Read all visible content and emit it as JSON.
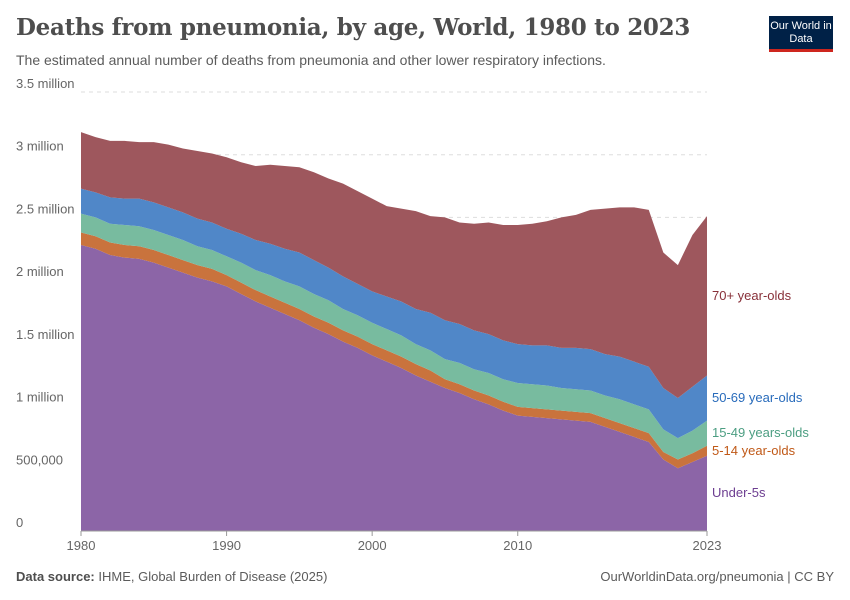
{
  "header": {
    "title": "Deaths from pneumonia, by age, World, 1980 to 2023",
    "subtitle": "The estimated annual number of deaths from pneumonia and other lower respiratory infections.",
    "logo_text": "Our World in Data"
  },
  "footer": {
    "source_label": "Data source:",
    "source_text": "IHME, Global Burden of Disease (2025)",
    "credit": "OurWorldinData.org/pneumonia | CC BY"
  },
  "chart_data": {
    "type": "area",
    "stacked": true,
    "title": "Deaths from pneumonia, by age, World, 1980 to 2023",
    "unit": "million deaths",
    "ylim": [
      0,
      3.5
    ],
    "xlim": [
      1980,
      2023
    ],
    "grid": true,
    "legend": "right-inline",
    "y_ticks": [
      {
        "value": 0,
        "label": "0"
      },
      {
        "value": 0.5,
        "label": "500,000"
      },
      {
        "value": 1,
        "label": "1 million"
      },
      {
        "value": 1.5,
        "label": "1.5 million"
      },
      {
        "value": 2,
        "label": "2 million"
      },
      {
        "value": 2.5,
        "label": "2.5 million"
      },
      {
        "value": 3,
        "label": "3 million"
      },
      {
        "value": 3.5,
        "label": "3.5 million"
      }
    ],
    "x_ticks": [
      {
        "value": 1980,
        "label": "1980"
      },
      {
        "value": 1990,
        "label": "1990"
      },
      {
        "value": 2000,
        "label": "2000"
      },
      {
        "value": 2010,
        "label": "2010"
      },
      {
        "value": 2023,
        "label": "2023"
      }
    ],
    "x": [
      1980,
      1981,
      1982,
      1983,
      1984,
      1985,
      1986,
      1987,
      1988,
      1989,
      1990,
      1991,
      1992,
      1993,
      1994,
      1995,
      1996,
      1997,
      1998,
      1999,
      2000,
      2001,
      2002,
      2003,
      2004,
      2005,
      2006,
      2007,
      2008,
      2009,
      2010,
      2011,
      2012,
      2013,
      2014,
      2015,
      2016,
      2017,
      2018,
      2019,
      2020,
      2021,
      2022,
      2023
    ],
    "series": [
      {
        "name": "Under-5s",
        "color": "#8c65a7",
        "label_color": "#6d3e91",
        "values": [
          2.28,
          2.25,
          2.2,
          2.18,
          2.17,
          2.14,
          2.1,
          2.06,
          2.02,
          1.99,
          1.95,
          1.89,
          1.83,
          1.78,
          1.73,
          1.68,
          1.62,
          1.57,
          1.51,
          1.46,
          1.4,
          1.35,
          1.3,
          1.24,
          1.19,
          1.14,
          1.1,
          1.05,
          1.01,
          0.96,
          0.92,
          0.91,
          0.9,
          0.89,
          0.88,
          0.87,
          0.83,
          0.79,
          0.75,
          0.71,
          0.57,
          0.5,
          0.55,
          0.6
        ]
      },
      {
        "name": "5-14 year-olds",
        "color": "#c9733d",
        "label_color": "#c05917",
        "values": [
          0.1,
          0.1,
          0.1,
          0.1,
          0.1,
          0.1,
          0.1,
          0.1,
          0.1,
          0.1,
          0.09,
          0.09,
          0.09,
          0.09,
          0.09,
          0.09,
          0.09,
          0.09,
          0.09,
          0.09,
          0.09,
          0.09,
          0.09,
          0.09,
          0.09,
          0.07,
          0.07,
          0.07,
          0.07,
          0.07,
          0.07,
          0.07,
          0.07,
          0.07,
          0.07,
          0.07,
          0.07,
          0.07,
          0.07,
          0.07,
          0.06,
          0.07,
          0.07,
          0.08
        ]
      },
      {
        "name": "15-49 years-olds",
        "color": "#78bb9f",
        "label_color": "#4c9e82",
        "values": [
          0.15,
          0.15,
          0.15,
          0.16,
          0.16,
          0.16,
          0.16,
          0.16,
          0.15,
          0.15,
          0.15,
          0.16,
          0.16,
          0.17,
          0.17,
          0.18,
          0.18,
          0.18,
          0.17,
          0.17,
          0.17,
          0.17,
          0.17,
          0.16,
          0.16,
          0.16,
          0.17,
          0.17,
          0.18,
          0.18,
          0.19,
          0.19,
          0.19,
          0.18,
          0.18,
          0.18,
          0.18,
          0.19,
          0.19,
          0.19,
          0.18,
          0.17,
          0.18,
          0.2
        ]
      },
      {
        "name": "50-69 year-olds",
        "color": "#5087c8",
        "label_color": "#286bbb",
        "values": [
          0.2,
          0.2,
          0.21,
          0.21,
          0.22,
          0.22,
          0.22,
          0.22,
          0.22,
          0.22,
          0.22,
          0.23,
          0.24,
          0.25,
          0.26,
          0.27,
          0.27,
          0.26,
          0.26,
          0.25,
          0.25,
          0.26,
          0.27,
          0.28,
          0.3,
          0.31,
          0.31,
          0.31,
          0.31,
          0.31,
          0.31,
          0.31,
          0.32,
          0.32,
          0.33,
          0.33,
          0.33,
          0.34,
          0.34,
          0.34,
          0.33,
          0.32,
          0.35,
          0.36
        ]
      },
      {
        "name": "70+ year-olds",
        "color": "#9e575d",
        "label_color": "#883039",
        "values": [
          0.45,
          0.44,
          0.45,
          0.46,
          0.45,
          0.48,
          0.5,
          0.51,
          0.54,
          0.55,
          0.57,
          0.57,
          0.59,
          0.63,
          0.66,
          0.68,
          0.7,
          0.71,
          0.74,
          0.74,
          0.74,
          0.72,
          0.74,
          0.78,
          0.77,
          0.82,
          0.81,
          0.85,
          0.89,
          0.92,
          0.95,
          0.97,
          0.99,
          1.04,
          1.06,
          1.11,
          1.16,
          1.19,
          1.23,
          1.25,
          1.08,
          1.06,
          1.21,
          1.27
        ]
      }
    ]
  }
}
